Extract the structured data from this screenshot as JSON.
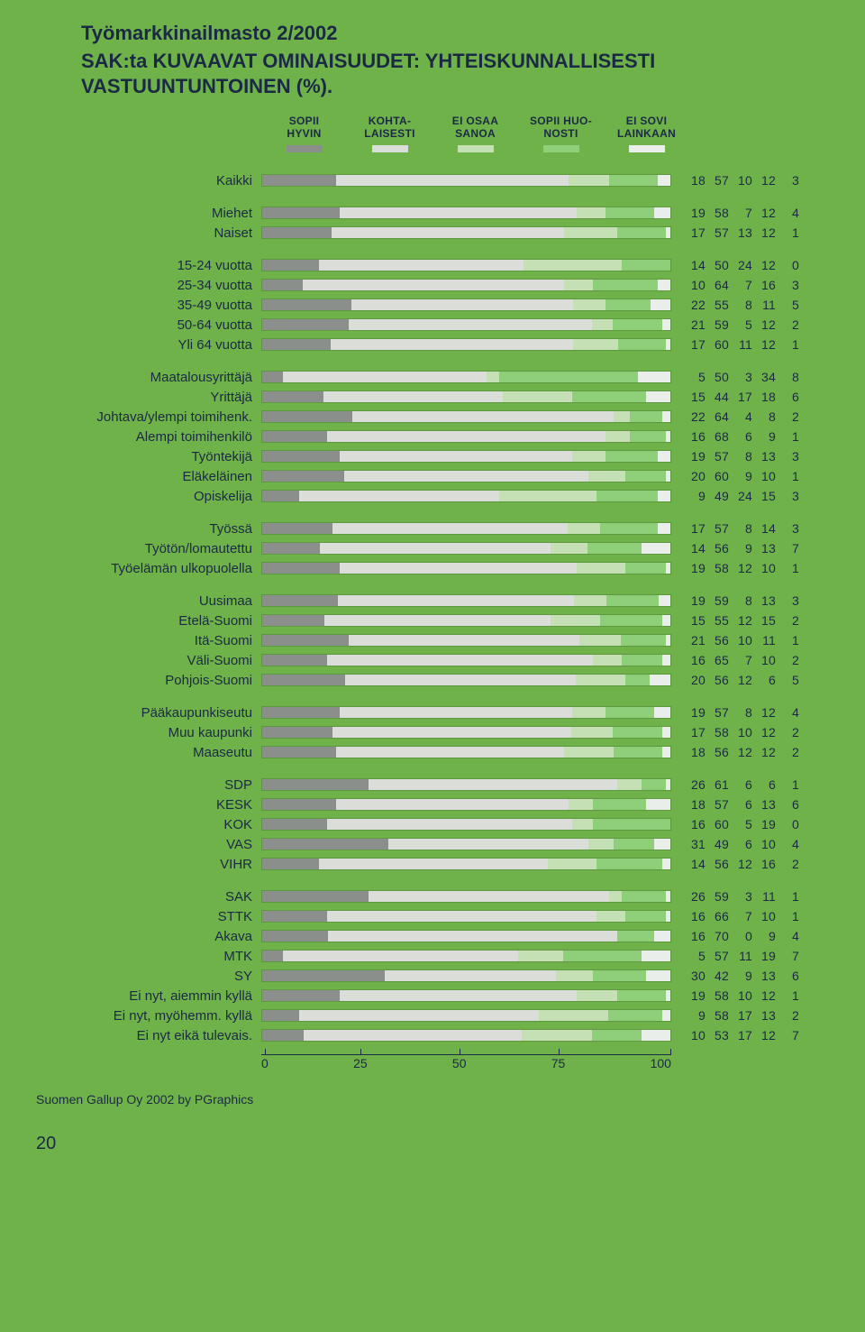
{
  "supertitle": "Työmarkkinailmasto 2/2002",
  "title": "SAK:ta KUVAAVAT OMINAISUUDET: YHTEISKUNNALLISESTI VASTUUNTUNTOINEN (%).",
  "colors": {
    "page_bg": "#6fb24a",
    "segs": [
      "#8b8f8c",
      "#daddd8",
      "#c4e0b4",
      "#8fcf7a",
      "#e9eeea"
    ]
  },
  "legend": [
    {
      "l1": "SOPII",
      "l2": "HYVIN"
    },
    {
      "l1": "KOHTA-",
      "l2": "LAISESTI"
    },
    {
      "l1": "EI OSAA",
      "l2": "SANOA"
    },
    {
      "l1": "SOPII HUO-",
      "l2": "NOSTI"
    },
    {
      "l1": "EI SOVI",
      "l2": "LAINKAAN"
    }
  ],
  "axis": [
    "0",
    "25",
    "50",
    "75",
    "100"
  ],
  "credit": "Suomen Gallup Oy 2002 by PGraphics",
  "pageno": "20",
  "groups": [
    [
      {
        "label": "Kaikki",
        "v": [
          18,
          57,
          10,
          12,
          3
        ]
      }
    ],
    [
      {
        "label": "Miehet",
        "v": [
          19,
          58,
          7,
          12,
          4
        ]
      },
      {
        "label": "Naiset",
        "v": [
          17,
          57,
          13,
          12,
          1
        ]
      }
    ],
    [
      {
        "label": "15-24 vuotta",
        "v": [
          14,
          50,
          24,
          12,
          0
        ]
      },
      {
        "label": "25-34 vuotta",
        "v": [
          10,
          64,
          7,
          16,
          3
        ]
      },
      {
        "label": "35-49 vuotta",
        "v": [
          22,
          55,
          8,
          11,
          5
        ]
      },
      {
        "label": "50-64 vuotta",
        "v": [
          21,
          59,
          5,
          12,
          2
        ]
      },
      {
        "label": "Yli 64 vuotta",
        "v": [
          17,
          60,
          11,
          12,
          1
        ]
      }
    ],
    [
      {
        "label": "Maatalousyrittäjä",
        "v": [
          5,
          50,
          3,
          34,
          8
        ]
      },
      {
        "label": "Yrittäjä",
        "v": [
          15,
          44,
          17,
          18,
          6
        ]
      },
      {
        "label": "Johtava/ylempi toimihenk.",
        "v": [
          22,
          64,
          4,
          8,
          2
        ]
      },
      {
        "label": "Alempi toimihenkilö",
        "v": [
          16,
          68,
          6,
          9,
          1
        ]
      },
      {
        "label": "Työntekijä",
        "v": [
          19,
          57,
          8,
          13,
          3
        ]
      },
      {
        "label": "Eläkeläinen",
        "v": [
          20,
          60,
          9,
          10,
          1
        ]
      },
      {
        "label": "Opiskelija",
        "v": [
          9,
          49,
          24,
          15,
          3
        ]
      }
    ],
    [
      {
        "label": "Työssä",
        "v": [
          17,
          57,
          8,
          14,
          3
        ]
      },
      {
        "label": "Työtön/lomautettu",
        "v": [
          14,
          56,
          9,
          13,
          7
        ]
      },
      {
        "label": "Työelämän ulkopuolella",
        "v": [
          19,
          58,
          12,
          10,
          1
        ]
      }
    ],
    [
      {
        "label": "Uusimaa",
        "v": [
          19,
          59,
          8,
          13,
          3
        ]
      },
      {
        "label": "Etelä-Suomi",
        "v": [
          15,
          55,
          12,
          15,
          2
        ]
      },
      {
        "label": "Itä-Suomi",
        "v": [
          21,
          56,
          10,
          11,
          1
        ]
      },
      {
        "label": "Väli-Suomi",
        "v": [
          16,
          65,
          7,
          10,
          2
        ]
      },
      {
        "label": "Pohjois-Suomi",
        "v": [
          20,
          56,
          12,
          6,
          5
        ]
      }
    ],
    [
      {
        "label": "Pääkaupunkiseutu",
        "v": [
          19,
          57,
          8,
          12,
          4
        ]
      },
      {
        "label": "Muu kaupunki",
        "v": [
          17,
          58,
          10,
          12,
          2
        ]
      },
      {
        "label": "Maaseutu",
        "v": [
          18,
          56,
          12,
          12,
          2
        ]
      }
    ],
    [
      {
        "label": "SDP",
        "v": [
          26,
          61,
          6,
          6,
          1
        ]
      },
      {
        "label": "KESK",
        "v": [
          18,
          57,
          6,
          13,
          6
        ]
      },
      {
        "label": "KOK",
        "v": [
          16,
          60,
          5,
          19,
          0
        ]
      },
      {
        "label": "VAS",
        "v": [
          31,
          49,
          6,
          10,
          4
        ]
      },
      {
        "label": "VIHR",
        "v": [
          14,
          56,
          12,
          16,
          2
        ]
      }
    ],
    [
      {
        "label": "SAK",
        "v": [
          26,
          59,
          3,
          11,
          1
        ]
      },
      {
        "label": "STTK",
        "v": [
          16,
          66,
          7,
          10,
          1
        ]
      },
      {
        "label": "Akava",
        "v": [
          16,
          70,
          0,
          9,
          4
        ]
      },
      {
        "label": "MTK",
        "v": [
          5,
          57,
          11,
          19,
          7
        ]
      },
      {
        "label": "SY",
        "v": [
          30,
          42,
          9,
          13,
          6
        ]
      },
      {
        "label": "Ei nyt, aiemmin kyllä",
        "v": [
          19,
          58,
          10,
          12,
          1
        ]
      },
      {
        "label": "Ei nyt, myöhemm. kyllä",
        "v": [
          9,
          58,
          17,
          13,
          2
        ]
      },
      {
        "label": "Ei nyt eikä tulevais.",
        "v": [
          10,
          53,
          17,
          12,
          7
        ]
      }
    ]
  ]
}
